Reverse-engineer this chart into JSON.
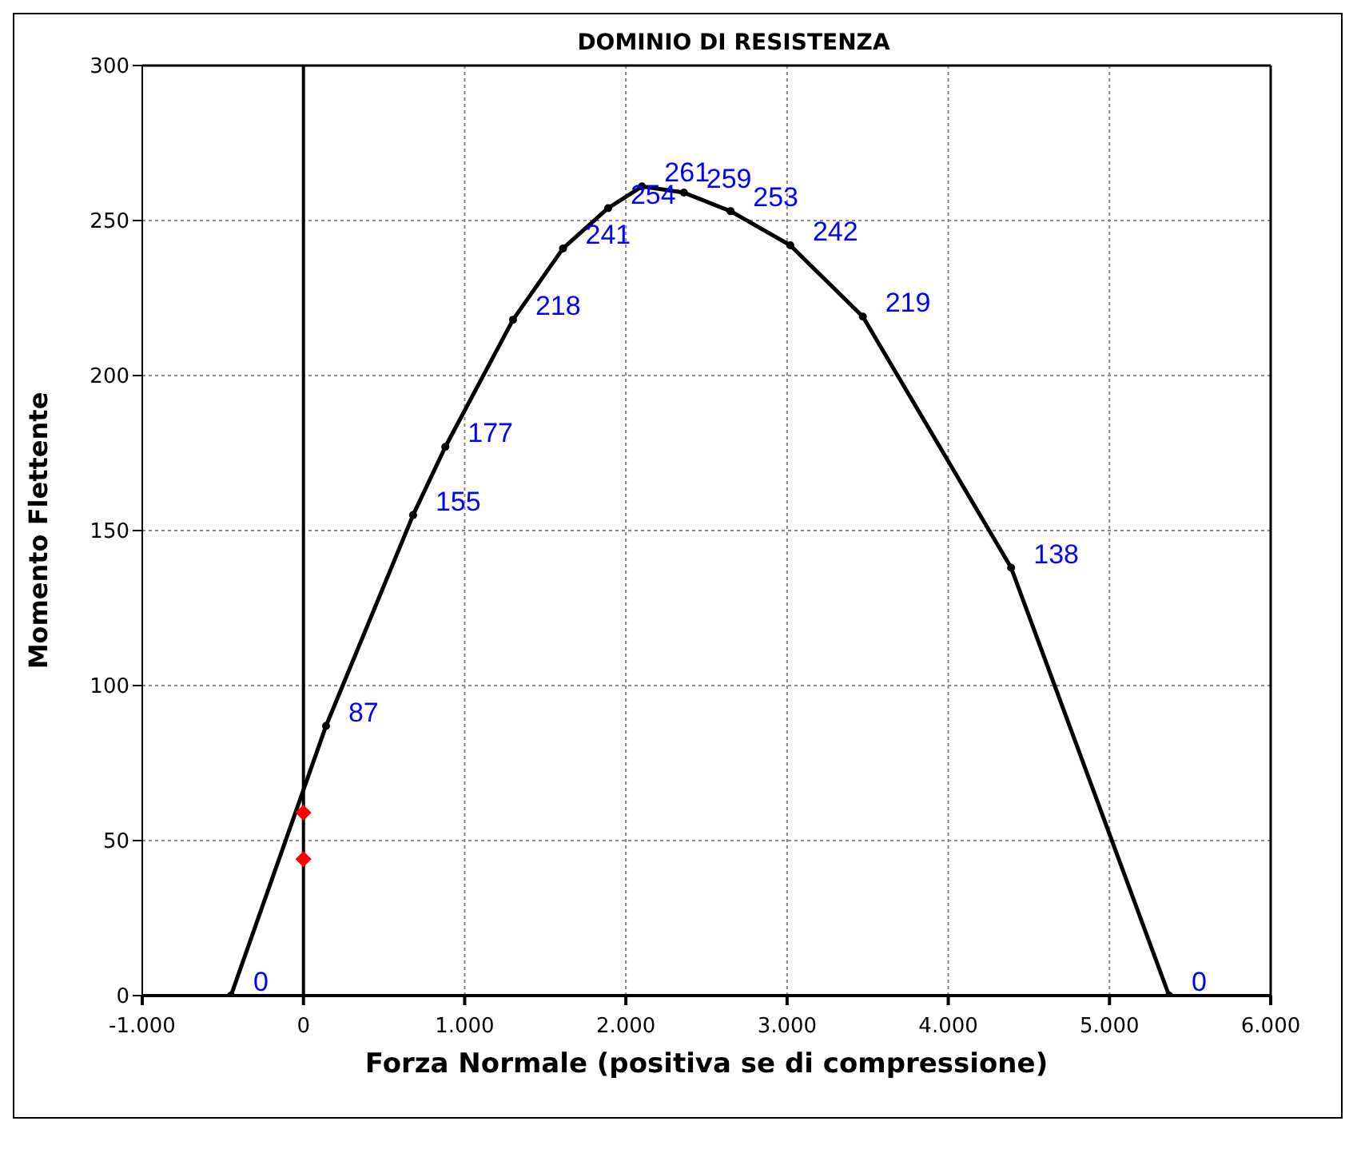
{
  "chart_data": {
    "type": "line",
    "title": "DOMINIO DI RESISTENZA",
    "xlabel": "Forza Normale (positiva se di compressione)",
    "ylabel": "Momento Flettente",
    "series": [
      {
        "color": "#000000",
        "marker": "circle",
        "data_labels": true,
        "x": [
          -450,
          140,
          680,
          880,
          1300,
          1610,
          1890,
          2100,
          2360,
          2650,
          3020,
          3470,
          4390,
          5370
        ],
        "values": [
          0,
          87,
          155,
          177,
          218,
          241,
          254,
          261,
          259,
          253,
          242,
          219,
          138,
          0
        ]
      },
      {
        "type": "scatter",
        "color": "#ff0000",
        "marker": "diamond",
        "x": [
          0,
          0
        ],
        "values": [
          59,
          44
        ]
      }
    ],
    "xlim": [
      -1000,
      6000
    ],
    "xticks": [
      {
        "value": -1000,
        "label": "-1.000"
      },
      0,
      {
        "value": 1000,
        "label": "1.000"
      },
      {
        "value": 2000,
        "label": "2.000"
      },
      {
        "value": 3000,
        "label": "3.000"
      },
      {
        "value": 4000,
        "label": "4.000"
      },
      {
        "value": 5000,
        "label": "5.000"
      },
      {
        "value": 6000,
        "label": "6.000"
      }
    ],
    "ylim": [
      0,
      300
    ],
    "yticks": [
      0,
      50,
      100,
      150,
      200,
      250,
      300
    ],
    "ref_lines": [
      {
        "axis": "x",
        "value": 0,
        "color": "#000000"
      }
    ],
    "grid": true
  }
}
